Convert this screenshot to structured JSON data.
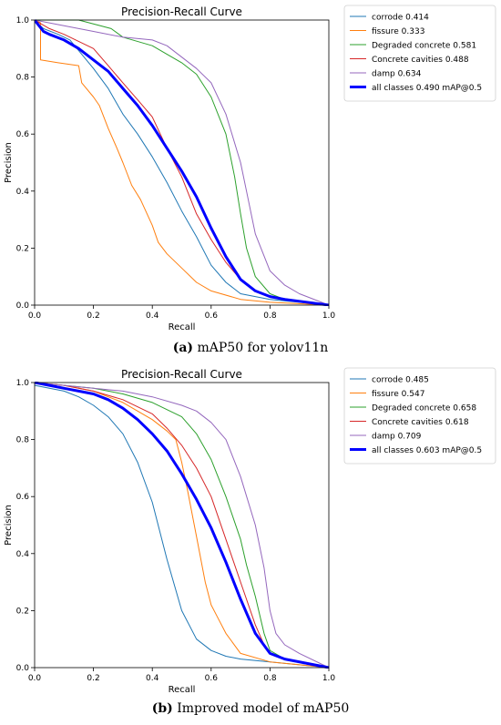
{
  "chart_data": [
    {
      "type": "line",
      "title": "Precision-Recall Curve",
      "xlabel": "Recall",
      "ylabel": "Precision",
      "xlim": [
        0,
        1
      ],
      "ylim": [
        0,
        1
      ],
      "xticks": [
        "0.0",
        "0.2",
        "0.4",
        "0.6",
        "0.8",
        "1.0"
      ],
      "yticks": [
        "0.0",
        "0.2",
        "0.4",
        "0.6",
        "0.8",
        "1.0"
      ],
      "grid": false,
      "legend_position": "outside-right",
      "caption_letter": "(a)",
      "caption_text": "mAP50 for yolov11n",
      "series": [
        {
          "name": "corrode 0.414",
          "color": "#1f77b4",
          "width": 1,
          "x": [
            0,
            0.03,
            0.08,
            0.12,
            0.16,
            0.2,
            0.25,
            0.3,
            0.35,
            0.4,
            0.45,
            0.5,
            0.55,
            0.6,
            0.65,
            0.7,
            0.8,
            1.0
          ],
          "y": [
            1.0,
            0.97,
            0.95,
            0.93,
            0.88,
            0.83,
            0.76,
            0.67,
            0.6,
            0.52,
            0.43,
            0.33,
            0.24,
            0.14,
            0.08,
            0.04,
            0.02,
            0.0
          ]
        },
        {
          "name": "fissure 0.333",
          "color": "#ff7f0e",
          "width": 1,
          "x": [
            0,
            0.02,
            0.02,
            0.08,
            0.15,
            0.16,
            0.2,
            0.22,
            0.25,
            0.28,
            0.3,
            0.33,
            0.36,
            0.4,
            0.42,
            0.45,
            0.5,
            0.55,
            0.6,
            0.7,
            0.8,
            1.0
          ],
          "y": [
            1.0,
            0.99,
            0.86,
            0.85,
            0.84,
            0.78,
            0.73,
            0.7,
            0.62,
            0.55,
            0.5,
            0.42,
            0.37,
            0.28,
            0.22,
            0.18,
            0.13,
            0.08,
            0.05,
            0.02,
            0.01,
            0.0
          ]
        },
        {
          "name": "Degraded concrete 0.581",
          "color": "#2ca02c",
          "width": 1,
          "x": [
            0,
            0.15,
            0.26,
            0.3,
            0.4,
            0.45,
            0.5,
            0.55,
            0.6,
            0.65,
            0.68,
            0.7,
            0.72,
            0.75,
            0.8,
            0.85,
            1.0
          ],
          "y": [
            1.0,
            1.0,
            0.97,
            0.94,
            0.91,
            0.88,
            0.85,
            0.81,
            0.73,
            0.6,
            0.45,
            0.32,
            0.2,
            0.1,
            0.04,
            0.02,
            0.0
          ]
        },
        {
          "name": "Concrete cavities 0.488",
          "color": "#d62728",
          "width": 1,
          "x": [
            0,
            0.05,
            0.1,
            0.2,
            0.25,
            0.3,
            0.35,
            0.4,
            0.45,
            0.5,
            0.55,
            0.6,
            0.65,
            0.7,
            0.75,
            0.8,
            1.0
          ],
          "y": [
            1.0,
            0.97,
            0.95,
            0.9,
            0.84,
            0.78,
            0.72,
            0.66,
            0.55,
            0.45,
            0.32,
            0.23,
            0.15,
            0.09,
            0.05,
            0.03,
            0.0
          ]
        },
        {
          "name": "damp 0.634",
          "color": "#9467bd",
          "width": 1,
          "x": [
            0,
            0.1,
            0.2,
            0.3,
            0.4,
            0.45,
            0.5,
            0.55,
            0.6,
            0.65,
            0.7,
            0.72,
            0.75,
            0.8,
            0.85,
            0.9,
            1.0
          ],
          "y": [
            1.0,
            0.98,
            0.96,
            0.94,
            0.93,
            0.91,
            0.87,
            0.83,
            0.78,
            0.67,
            0.5,
            0.4,
            0.25,
            0.12,
            0.07,
            0.04,
            0.0
          ]
        },
        {
          "name": "all classes 0.490 mAP@0.5",
          "color": "#0000ff",
          "width": 3,
          "x": [
            0,
            0.03,
            0.05,
            0.1,
            0.15,
            0.2,
            0.25,
            0.3,
            0.35,
            0.4,
            0.45,
            0.5,
            0.55,
            0.6,
            0.65,
            0.7,
            0.75,
            0.8,
            0.85,
            1.0
          ],
          "y": [
            1.0,
            0.96,
            0.95,
            0.93,
            0.9,
            0.86,
            0.82,
            0.76,
            0.7,
            0.63,
            0.55,
            0.47,
            0.38,
            0.27,
            0.17,
            0.09,
            0.05,
            0.03,
            0.02,
            0.0
          ]
        }
      ]
    },
    {
      "type": "line",
      "title": "Precision-Recall Curve",
      "xlabel": "Recall",
      "ylabel": "Precision",
      "xlim": [
        0,
        1
      ],
      "ylim": [
        0,
        1
      ],
      "xticks": [
        "0.0",
        "0.2",
        "0.4",
        "0.6",
        "0.8",
        "1.0"
      ],
      "yticks": [
        "0.0",
        "0.2",
        "0.4",
        "0.6",
        "0.8",
        "1.0"
      ],
      "grid": false,
      "legend_position": "outside-right",
      "caption_letter": "(b)",
      "caption_text": "Improved model of mAP50",
      "series": [
        {
          "name": "corrode 0.485",
          "color": "#1f77b4",
          "width": 1,
          "x": [
            0,
            0.05,
            0.1,
            0.15,
            0.2,
            0.25,
            0.3,
            0.35,
            0.4,
            0.45,
            0.5,
            0.55,
            0.6,
            0.65,
            0.7,
            0.8,
            1.0
          ],
          "y": [
            0.99,
            0.98,
            0.97,
            0.95,
            0.92,
            0.88,
            0.82,
            0.72,
            0.58,
            0.38,
            0.2,
            0.1,
            0.06,
            0.04,
            0.03,
            0.02,
            0.0
          ]
        },
        {
          "name": "fissure 0.547",
          "color": "#ff7f0e",
          "width": 1,
          "x": [
            0,
            0.1,
            0.2,
            0.3,
            0.4,
            0.45,
            0.48,
            0.5,
            0.52,
            0.55,
            0.58,
            0.6,
            0.62,
            0.65,
            0.7,
            0.8,
            1.0
          ],
          "y": [
            1.0,
            0.99,
            0.97,
            0.93,
            0.87,
            0.83,
            0.8,
            0.72,
            0.62,
            0.46,
            0.3,
            0.22,
            0.18,
            0.12,
            0.05,
            0.02,
            0.0
          ]
        },
        {
          "name": "Degraded concrete 0.658",
          "color": "#2ca02c",
          "width": 1,
          "x": [
            0,
            0.1,
            0.2,
            0.3,
            0.4,
            0.5,
            0.55,
            0.6,
            0.65,
            0.7,
            0.72,
            0.75,
            0.78,
            0.8,
            0.85,
            1.0
          ],
          "y": [
            1.0,
            0.99,
            0.98,
            0.96,
            0.93,
            0.88,
            0.82,
            0.73,
            0.6,
            0.45,
            0.36,
            0.25,
            0.12,
            0.06,
            0.03,
            0.0
          ]
        },
        {
          "name": "Concrete cavities 0.618",
          "color": "#d62728",
          "width": 1,
          "x": [
            0,
            0.1,
            0.2,
            0.3,
            0.4,
            0.45,
            0.5,
            0.55,
            0.6,
            0.65,
            0.7,
            0.75,
            0.78,
            0.8,
            0.85,
            1.0
          ],
          "y": [
            1.0,
            0.99,
            0.97,
            0.94,
            0.89,
            0.84,
            0.78,
            0.7,
            0.6,
            0.45,
            0.3,
            0.15,
            0.08,
            0.05,
            0.03,
            0.0
          ]
        },
        {
          "name": "damp 0.709",
          "color": "#9467bd",
          "width": 1,
          "x": [
            0,
            0.1,
            0.2,
            0.3,
            0.4,
            0.5,
            0.55,
            0.6,
            0.65,
            0.7,
            0.75,
            0.78,
            0.8,
            0.82,
            0.85,
            0.9,
            1.0
          ],
          "y": [
            1.0,
            0.99,
            0.98,
            0.97,
            0.95,
            0.92,
            0.9,
            0.86,
            0.8,
            0.67,
            0.5,
            0.35,
            0.2,
            0.12,
            0.08,
            0.05,
            0.0
          ]
        },
        {
          "name": "all classes 0.603 mAP@0.5",
          "color": "#0000ff",
          "width": 3,
          "x": [
            0,
            0.05,
            0.1,
            0.15,
            0.2,
            0.25,
            0.3,
            0.35,
            0.4,
            0.45,
            0.5,
            0.55,
            0.6,
            0.65,
            0.7,
            0.75,
            0.8,
            0.85,
            1.0
          ],
          "y": [
            1.0,
            0.99,
            0.98,
            0.97,
            0.96,
            0.94,
            0.91,
            0.87,
            0.82,
            0.76,
            0.68,
            0.59,
            0.49,
            0.37,
            0.24,
            0.12,
            0.05,
            0.03,
            0.0
          ]
        }
      ]
    }
  ]
}
